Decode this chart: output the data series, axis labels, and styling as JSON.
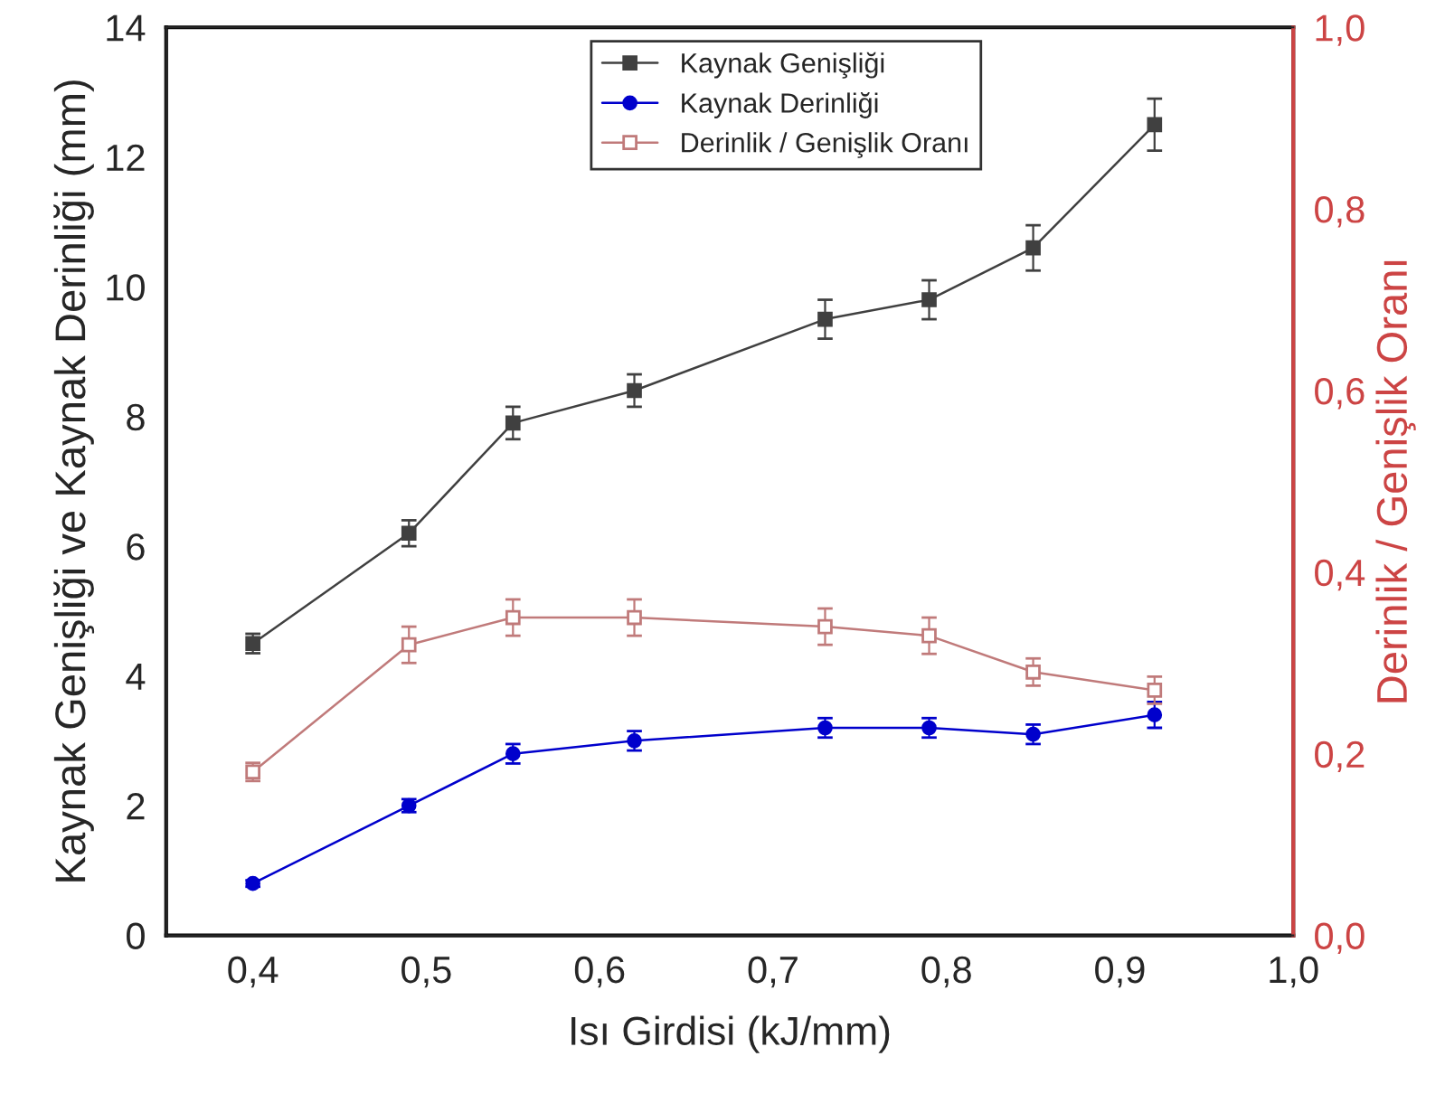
{
  "chart_data": {
    "type": "line",
    "xlabel": "Isı Girdisi (kJ/mm)",
    "ylabel": "Kaynak Genişliği ve Kaynak Derinliği (mm)",
    "y2label": "Derinlik / Genişlik Oranı",
    "x": [
      0.4,
      0.49,
      0.55,
      0.62,
      0.73,
      0.79,
      0.85,
      0.92
    ],
    "series": [
      {
        "name": "Kaynak Genişliği",
        "color": "#404040",
        "marker": "square",
        "values": [
          4.5,
          6.2,
          7.9,
          8.4,
          9.5,
          9.8,
          10.6,
          12.5
        ],
        "errors": [
          0.15,
          0.2,
          0.25,
          0.25,
          0.3,
          0.3,
          0.35,
          0.4
        ]
      },
      {
        "name": "Kaynak Derinliği",
        "color": "#0000cc",
        "marker": "circle",
        "values": [
          0.8,
          2.0,
          2.8,
          3.0,
          3.2,
          3.2,
          3.1,
          3.4
        ],
        "errors": [
          0.05,
          0.1,
          0.15,
          0.15,
          0.15,
          0.15,
          0.15,
          0.2
        ]
      },
      {
        "name": "Derinlik / Genişlik Oranı",
        "color": "#c07a7a",
        "marker": "square",
        "axis": "y2",
        "values": [
          0.18,
          0.32,
          0.35,
          0.35,
          0.34,
          0.33,
          0.29,
          0.27
        ],
        "errors": [
          0.01,
          0.02,
          0.02,
          0.02,
          0.02,
          0.02,
          0.015,
          0.015
        ]
      }
    ],
    "xlim": [
      0.35,
      1.0
    ],
    "xticks": [
      {
        "value": 0.4,
        "label": "0,4"
      },
      {
        "value": 0.5,
        "label": "0,5"
      },
      {
        "value": 0.6,
        "label": "0,6"
      },
      {
        "value": 0.7,
        "label": "0,7"
      },
      {
        "value": 0.8,
        "label": "0,8"
      },
      {
        "value": 0.9,
        "label": "0,9"
      },
      {
        "value": 1.0,
        "label": "1,0"
      }
    ],
    "ylim": [
      0,
      14
    ],
    "yticks": [
      0,
      2,
      4,
      6,
      8,
      10,
      12,
      14
    ],
    "y2lim": [
      0,
      1.0
    ],
    "y2ticks": [
      {
        "value": 0,
        "label": "0,0"
      },
      {
        "value": 0.2,
        "label": "0,2"
      },
      {
        "value": 0.4,
        "label": "0,4"
      },
      {
        "value": 0.6,
        "label": "0,6"
      },
      {
        "value": 0.8,
        "label": "0,8"
      },
      {
        "value": 1.0,
        "label": "1,0"
      }
    ],
    "legend": "top",
    "grid": false
  }
}
